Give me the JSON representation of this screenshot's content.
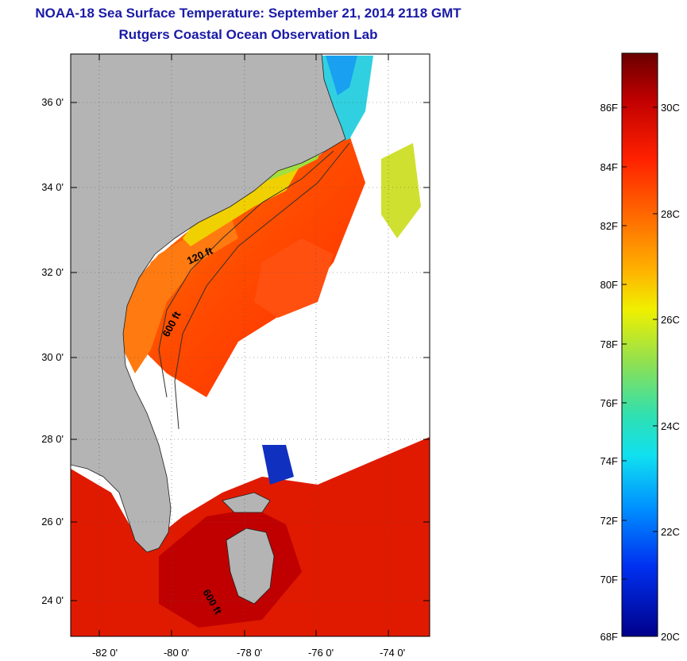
{
  "title_line1": "NOAA-18 Sea Surface Temperature:  September 21, 2014 2118 GMT",
  "title_line2": "Rutgers Coastal Ocean Observation Lab",
  "lat_labels": [
    "36 0'",
    "34 0'",
    "32 0'",
    "30 0'",
    "28 0'",
    "26 0'",
    "24 0'"
  ],
  "lon_labels": [
    "-82 0'",
    "-80 0'",
    "-78 0'",
    "-76 0'",
    "-74 0'"
  ],
  "contours": {
    "c1": "120 ft",
    "c2": "600 ft",
    "c3": "600 ft"
  },
  "colorbar": {
    "f_labels": [
      "86F",
      "84F",
      "82F",
      "80F",
      "78F",
      "76F",
      "74F",
      "72F",
      "70F",
      "68F"
    ],
    "c_labels": [
      "30C",
      "28C",
      "26C",
      "24C",
      "22C",
      "20C"
    ]
  },
  "colors": {
    "land": "#b4b4b4",
    "cloud": "#ffffff",
    "title": "#1a1aa6",
    "scale": [
      "#800000",
      "#c00000",
      "#ff2000",
      "#ff6000",
      "#ffa000",
      "#ffe000",
      "#c8f000",
      "#60e080",
      "#20e0e0",
      "#00a0ff",
      "#0040ff",
      "#0000a0"
    ]
  }
}
